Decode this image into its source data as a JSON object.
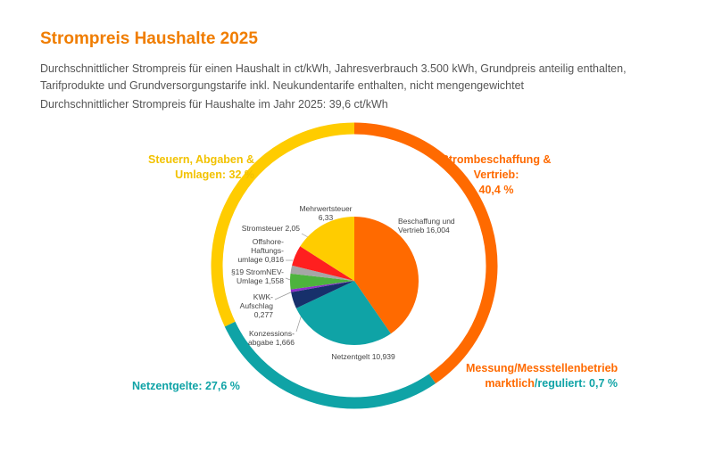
{
  "chart_data": {
    "type": "pie",
    "title": "Strompreis Haushalte 2025",
    "subtitle": "Durchschnittlicher Strompreis für einen Haushalt in ct/kWh, Jahresverbrauch 3.500 kWh, Grundpreis anteilig enthalten, Tarifprodukte und Grundversorgungstarife inkl. Neukundentarife enthalten, nicht mengengewichtet",
    "note": "Durchschnittlicher Strompreis für Haushalte im Jahr 2025: 39,6 ct/kWh",
    "categories": [
      "Beschaffung und Vertrieb",
      "Netzentgelt",
      "Konzessions-abgabe",
      "KWK-Aufschlag",
      "§19 StromNEV-Umlage",
      "Offshore-Haftungs-umlage",
      "Stromsteuer",
      "Mehrwertsteuer"
    ],
    "values": [
      16.004,
      10.939,
      1.666,
      0.277,
      1.558,
      0.816,
      2.05,
      6.33
    ],
    "value_labels": [
      "16,004",
      "10,939",
      "1,666",
      "0,277",
      "1,558",
      "0,816",
      "2,05",
      "6,33"
    ],
    "colors": [
      "#ff6a00",
      "#0fa3a6",
      "#17306b",
      "#8b2fc9",
      "#4db33d",
      "#a6a6a6",
      "#ff1f1f",
      "#ffcc00"
    ],
    "ring": {
      "categories": [
        "Strombeschaffung & Vertrieb:",
        "Netzentgelte:",
        "Steuern, Abgaben & Umlagen:"
      ],
      "values": [
        40.4,
        27.6,
        32
      ],
      "value_labels": [
        "40,4 %",
        "27,6 %",
        "32 %"
      ],
      "colors": [
        "#ff6a00",
        "#0fa3a6",
        "#ffcc00"
      ]
    },
    "annotation": {
      "title": "Messung/Messstellenbetrieb",
      "parts": [
        "marktlich",
        "/reguliert: 0,7 %"
      ]
    }
  }
}
